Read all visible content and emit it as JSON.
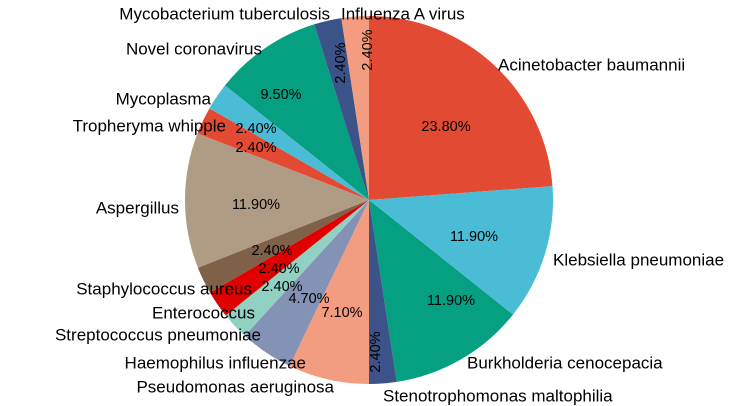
{
  "chart_data": {
    "type": "pie",
    "title": "",
    "start": "12 o'clock",
    "direction": "clockwise",
    "slices": [
      {
        "label": "Acinetobacter baumannii",
        "value": 23.8,
        "pct_text": "23.80%",
        "color": "#E34A33"
      },
      {
        "label": "Klebsiella pneumoniae",
        "value": 11.9,
        "pct_text": "11.90%",
        "color": "#4BBCD6"
      },
      {
        "label": "Burkholderia cenocepacia",
        "value": 11.9,
        "pct_text": "11.90%",
        "color": "#05A081"
      },
      {
        "label": "Stenotrophomonas maltophilia",
        "value": 2.4,
        "pct_text": "2.40%",
        "color": "#3B5388"
      },
      {
        "label": "Pseudomonas aeruginosa",
        "value": 7.1,
        "pct_text": "7.10%",
        "color": "#F39C7F"
      },
      {
        "label": "Haemophilus influenzae",
        "value": 4.7,
        "pct_text": "4.70%",
        "color": "#8492B5"
      },
      {
        "label": "Streptococcus pneumoniae",
        "value": 2.4,
        "pct_text": "2.40%",
        "color": "#91D1C2"
      },
      {
        "label": "Enterococcus",
        "value": 2.4,
        "pct_text": "2.40%",
        "color": "#E00000"
      },
      {
        "label": "Staphylococcus aureus",
        "value": 2.4,
        "pct_text": "2.40%",
        "color": "#7E6148"
      },
      {
        "label": "Aspergillus",
        "value": 11.9,
        "pct_text": "11.90%",
        "color": "#B09C85"
      },
      {
        "label": "Tropheryma whipple",
        "value": 2.4,
        "pct_text": "2.40%",
        "color": "#E34A33"
      },
      {
        "label": "Mycoplasma",
        "value": 2.4,
        "pct_text": "2.40%",
        "color": "#4BBCD6"
      },
      {
        "label": "Novel coronavirus",
        "value": 9.5,
        "pct_text": "9.50%",
        "color": "#05A081"
      },
      {
        "label": "Mycobacterium tuberculosis",
        "value": 2.4,
        "pct_text": "2.40%",
        "color": "#3B5388"
      },
      {
        "label": "Influenza A virus",
        "value": 2.4,
        "pct_text": "2.40%",
        "color": "#F39C7F"
      }
    ]
  }
}
